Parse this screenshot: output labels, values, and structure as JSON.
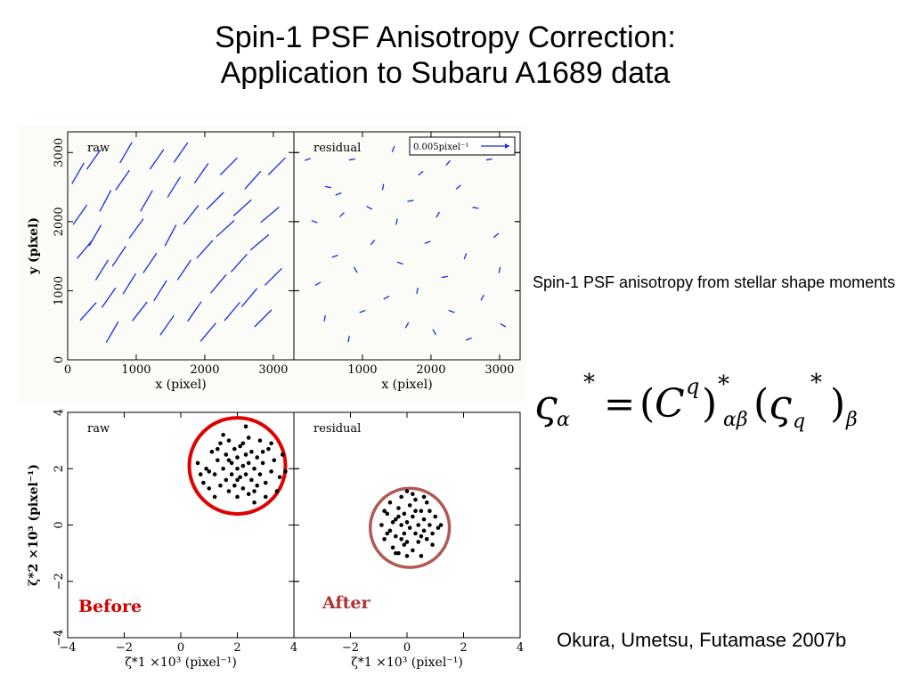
{
  "slide": {
    "title_line1": "Spin-1 PSF Anisotropy Correction:",
    "title_line2": "Application to Subaru A1689 data",
    "description": "Spin-1 PSF anisotropy from stellar shape moments",
    "citation": "Okura, Umetsu, Futamase 2007b",
    "formula": {
      "lhs_symbol": "ς",
      "lhs_sub": "α",
      "lhs_sup": "*",
      "equals": "=",
      "open_paren": "(",
      "matrix": "C",
      "matrix_sup": "q",
      "close_paren": ")",
      "matrix_outer_sup": "*",
      "matrix_sub": "αβ",
      "rhs_symbol": "ς",
      "rhs_sub": "q",
      "rhs_sup": "*",
      "rhs_outer_sub": "β"
    },
    "badges": {
      "before": "Before",
      "after": "After"
    },
    "colors": {
      "vector": "#1a2bdf",
      "before_circle": "#e00000",
      "after_circle": "#b05a55",
      "label_red": "#cc0000",
      "after_label": "#b03030"
    }
  },
  "chart_data": [
    {
      "type": "scatter",
      "subtype": "vector-field",
      "panel_label": "raw",
      "xlabel": "x (pixel)",
      "ylabel": "y (pixel)",
      "xlim": [
        0,
        3300
      ],
      "ylim": [
        0,
        3300
      ],
      "xticks": [
        "0",
        "1000",
        "2000",
        "3000"
      ],
      "yticks": [
        "0",
        "1000",
        "2000",
        "3000"
      ],
      "vectors": [
        [
          150,
          2700,
          60
        ],
        [
          180,
          2100,
          55
        ],
        [
          250,
          1600,
          50
        ],
        [
          300,
          700,
          48
        ],
        [
          380,
          2900,
          55
        ],
        [
          400,
          1800,
          60
        ],
        [
          500,
          1300,
          58
        ],
        [
          550,
          2300,
          62
        ],
        [
          600,
          900,
          55
        ],
        [
          650,
          400,
          60
        ],
        [
          750,
          1500,
          56
        ],
        [
          800,
          2600,
          55
        ],
        [
          850,
          3000,
          60
        ],
        [
          900,
          1100,
          58
        ],
        [
          1000,
          1900,
          54
        ],
        [
          1050,
          700,
          52
        ],
        [
          1150,
          2300,
          60
        ],
        [
          1200,
          1400,
          56
        ],
        [
          1300,
          2900,
          55
        ],
        [
          1350,
          1000,
          58
        ],
        [
          1450,
          500,
          55
        ],
        [
          1500,
          1800,
          62
        ],
        [
          1550,
          2500,
          58
        ],
        [
          1650,
          3000,
          55
        ],
        [
          1700,
          1300,
          56
        ],
        [
          1800,
          2100,
          52
        ],
        [
          1850,
          700,
          55
        ],
        [
          1950,
          2700,
          55
        ],
        [
          2000,
          1600,
          48
        ],
        [
          2050,
          400,
          50
        ],
        [
          2150,
          2300,
          45
        ],
        [
          2200,
          1100,
          50
        ],
        [
          2300,
          1900,
          42
        ],
        [
          2350,
          2800,
          45
        ],
        [
          2400,
          700,
          50
        ],
        [
          2500,
          1400,
          48
        ],
        [
          2550,
          2200,
          42
        ],
        [
          2650,
          900,
          50
        ],
        [
          2700,
          2600,
          48
        ],
        [
          2800,
          1700,
          40
        ],
        [
          2850,
          600,
          45
        ],
        [
          2950,
          2100,
          40
        ],
        [
          3000,
          1200,
          45
        ],
        [
          3050,
          2800,
          45
        ]
      ]
    },
    {
      "type": "scatter",
      "subtype": "vector-field",
      "panel_label": "residual",
      "legend_label": "0.005pixel⁻¹",
      "xlabel": "x (pixel)",
      "xlim": [
        0,
        3300
      ],
      "ylim": [
        0,
        3300
      ],
      "xticks": [
        "0",
        "1000",
        "2000",
        "3000"
      ],
      "vectors": [
        [
          200,
          2900,
          20
        ],
        [
          300,
          2000,
          340
        ],
        [
          350,
          1100,
          30
        ],
        [
          450,
          600,
          80
        ],
        [
          500,
          2500,
          350
        ],
        [
          600,
          1500,
          20
        ],
        [
          700,
          2100,
          45
        ],
        [
          800,
          300,
          80
        ],
        [
          850,
          2900,
          10
        ],
        [
          900,
          1300,
          300
        ],
        [
          1000,
          700,
          20
        ],
        [
          1100,
          2200,
          330
        ],
        [
          1150,
          1700,
          50
        ],
        [
          1300,
          2500,
          80
        ],
        [
          1350,
          900,
          30
        ],
        [
          1450,
          3050,
          70
        ],
        [
          1550,
          1400,
          340
        ],
        [
          1650,
          500,
          60
        ],
        [
          1700,
          2300,
          10
        ],
        [
          1800,
          1000,
          80
        ],
        [
          1850,
          2700,
          40
        ],
        [
          1950,
          1700,
          20
        ],
        [
          2050,
          400,
          300
        ],
        [
          2100,
          2100,
          60
        ],
        [
          2200,
          1200,
          10
        ],
        [
          2300,
          700,
          340
        ],
        [
          2400,
          2500,
          40
        ],
        [
          2500,
          1500,
          70
        ],
        [
          2550,
          300,
          20
        ],
        [
          2650,
          2200,
          350
        ],
        [
          2750,
          900,
          60
        ],
        [
          2850,
          2900,
          10
        ],
        [
          2950,
          1800,
          40
        ],
        [
          3050,
          500,
          330
        ],
        [
          3000,
          1300,
          80
        ],
        [
          2250,
          2850,
          50
        ],
        [
          1500,
          2000,
          80
        ],
        [
          650,
          2400,
          20
        ]
      ]
    },
    {
      "type": "scatter",
      "panel_label": "raw",
      "xlabel": "ζ*1 ×10³ (pixel⁻¹)",
      "ylabel": "ζ*2 ×10³ (pixel⁻¹)",
      "xlim": [
        -4,
        4
      ],
      "ylim": [
        -4,
        4
      ],
      "xticks": [
        "−4",
        "−2",
        "0",
        "2",
        "4"
      ],
      "yticks": [
        "−4",
        "−2",
        "0",
        "2",
        "4"
      ],
      "circle": {
        "cx": 2.0,
        "cy": 2.1,
        "r": 1.7
      },
      "points": [
        [
          0.6,
          2.2
        ],
        [
          0.8,
          1.5
        ],
        [
          0.9,
          2.0
        ],
        [
          1.0,
          1.3
        ],
        [
          1.1,
          2.6
        ],
        [
          1.2,
          1.8
        ],
        [
          1.3,
          2.3
        ],
        [
          1.4,
          1.4
        ],
        [
          1.4,
          2.9
        ],
        [
          1.5,
          2.0
        ],
        [
          1.6,
          1.6
        ],
        [
          1.6,
          2.5
        ],
        [
          1.7,
          3.0
        ],
        [
          1.7,
          1.2
        ],
        [
          1.8,
          2.2
        ],
        [
          1.8,
          1.8
        ],
        [
          1.9,
          2.7
        ],
        [
          1.9,
          1.4
        ],
        [
          2.0,
          2.0
        ],
        [
          2.0,
          2.4
        ],
        [
          2.0,
          1.0
        ],
        [
          2.1,
          1.7
        ],
        [
          2.1,
          2.8
        ],
        [
          2.2,
          2.1
        ],
        [
          2.2,
          1.3
        ],
        [
          2.3,
          2.5
        ],
        [
          2.3,
          1.8
        ],
        [
          2.4,
          2.2
        ],
        [
          2.4,
          3.1
        ],
        [
          2.5,
          1.6
        ],
        [
          2.5,
          2.6
        ],
        [
          2.6,
          2.0
        ],
        [
          2.6,
          1.2
        ],
        [
          2.7,
          2.4
        ],
        [
          2.8,
          1.8
        ],
        [
          2.8,
          3.0
        ],
        [
          2.9,
          2.2
        ],
        [
          3.0,
          1.5
        ],
        [
          3.1,
          2.7
        ],
        [
          3.2,
          1.9
        ],
        [
          3.3,
          2.3
        ],
        [
          3.5,
          1.7
        ],
        [
          3.6,
          2.5
        ],
        [
          2.3,
          3.5
        ],
        [
          1.5,
          3.2
        ],
        [
          0.7,
          1.8
        ],
        [
          1.2,
          1.0
        ],
        [
          2.6,
          0.8
        ],
        [
          3.0,
          1.0
        ],
        [
          3.4,
          1.2
        ],
        [
          2.0,
          1.6
        ],
        [
          1.7,
          2.3
        ],
        [
          2.2,
          2.9
        ],
        [
          2.9,
          2.6
        ],
        [
          1.0,
          1.9
        ],
        [
          2.7,
          1.4
        ],
        [
          3.2,
          2.9
        ],
        [
          1.3,
          2.7
        ],
        [
          2.4,
          1.1
        ],
        [
          3.7,
          1.9
        ]
      ]
    },
    {
      "type": "scatter",
      "panel_label": "residual",
      "xlabel": "ζ*1 ×10³ (pixel⁻¹)",
      "xlim": [
        -4,
        4
      ],
      "ylim": [
        -4,
        4
      ],
      "xticks": [
        "−4",
        "−2",
        "0",
        "2",
        "4"
      ],
      "circle": {
        "cx": 0.1,
        "cy": -0.1,
        "r": 1.4
      },
      "points": [
        [
          -0.9,
          0.0
        ],
        [
          -0.8,
          -0.5
        ],
        [
          -0.7,
          0.4
        ],
        [
          -0.6,
          -0.2
        ],
        [
          -0.6,
          0.8
        ],
        [
          -0.5,
          -0.8
        ],
        [
          -0.4,
          0.2
        ],
        [
          -0.4,
          -0.4
        ],
        [
          -0.3,
          0.6
        ],
        [
          -0.3,
          -1.0
        ],
        [
          -0.2,
          0.0
        ],
        [
          -0.2,
          1.0
        ],
        [
          -0.1,
          -0.3
        ],
        [
          -0.1,
          0.4
        ],
        [
          0.0,
          -0.6
        ],
        [
          0.0,
          0.1
        ],
        [
          0.0,
          1.2
        ],
        [
          0.1,
          -0.1
        ],
        [
          0.1,
          0.7
        ],
        [
          0.2,
          -0.9
        ],
        [
          0.2,
          0.3
        ],
        [
          0.3,
          -0.3
        ],
        [
          0.3,
          0.9
        ],
        [
          0.4,
          0.0
        ],
        [
          0.4,
          -0.6
        ],
        [
          0.5,
          0.5
        ],
        [
          0.5,
          -1.1
        ],
        [
          0.6,
          -0.2
        ],
        [
          0.6,
          0.2
        ],
        [
          0.7,
          -0.5
        ],
        [
          0.7,
          0.8
        ],
        [
          0.8,
          0.0
        ],
        [
          0.9,
          -0.3
        ],
        [
          1.0,
          0.3
        ],
        [
          1.1,
          -0.1
        ],
        [
          -0.5,
          0.1
        ],
        [
          -0.1,
          -0.7
        ],
        [
          0.3,
          0.5
        ],
        [
          -0.7,
          -0.3
        ],
        [
          0.8,
          0.5
        ],
        [
          0.0,
          -1.1
        ],
        [
          -0.3,
          0.3
        ],
        [
          0.5,
          -0.4
        ],
        [
          0.2,
          1.1
        ],
        [
          -0.8,
          0.5
        ],
        [
          1.2,
          0.0
        ],
        [
          0.6,
          1.0
        ],
        [
          -0.4,
          -1.0
        ],
        [
          0.9,
          -0.7
        ],
        [
          -0.2,
          -0.5
        ]
      ]
    }
  ]
}
